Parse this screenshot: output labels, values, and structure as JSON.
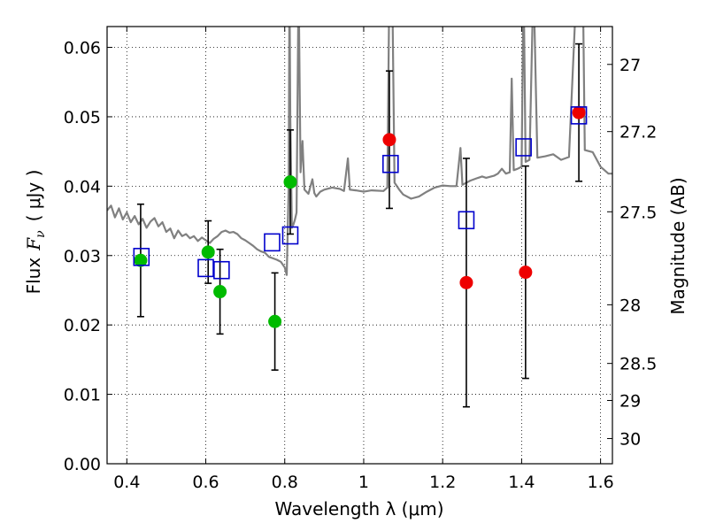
{
  "chart_data": {
    "type": "scatter",
    "xlabel": "Wavelength  λ (μm)",
    "ylabel": "Flux  F_ν  ( μJy )",
    "ylabel_prefix": "Flux",
    "ylabel_var": "F",
    "ylabel_sub": "ν",
    "ylabel_unit": "( μJy )",
    "ylabel_right": "Magnitude (AB)",
    "xlim": [
      0.35,
      1.63
    ],
    "ylim": [
      0.0,
      0.063
    ],
    "x_ticks": [
      0.4,
      0.6,
      0.8,
      1.0,
      1.2,
      1.4,
      1.6
    ],
    "x_tick_labels": [
      "0.4",
      "0.6",
      "0.8",
      "1",
      "1.2",
      "1.4",
      "1.6"
    ],
    "y_ticks": [
      0.0,
      0.01,
      0.02,
      0.03,
      0.04,
      0.05,
      0.06
    ],
    "y_tick_labels": [
      "0.00",
      "0.01",
      "0.02",
      "0.03",
      "0.04",
      "0.05",
      "0.06"
    ],
    "right_ticks": [
      {
        "value": 27,
        "label": "27"
      },
      {
        "value": 27.2,
        "label": "27.2"
      },
      {
        "value": 27.5,
        "label": "27.5"
      },
      {
        "value": 28,
        "label": "28"
      },
      {
        "value": 28.5,
        "label": "28.5"
      },
      {
        "value": 29,
        "label": "29"
      },
      {
        "value": 30,
        "label": "30"
      }
    ],
    "grid": true,
    "colors": {
      "spectrum": "#808080",
      "green_points": "#00bb00",
      "red_points": "#ee0000",
      "model_points": "#0000cc",
      "errorbars": "#000000"
    },
    "series": [
      {
        "marker": "circle",
        "color": "#00bb00",
        "points": [
          {
            "x": 0.435,
            "y": 0.0293,
            "err": 0.0081
          },
          {
            "x": 0.606,
            "y": 0.0305,
            "err": 0.0045
          },
          {
            "x": 0.636,
            "y": 0.0248,
            "err": 0.0061
          },
          {
            "x": 0.775,
            "y": 0.0205,
            "err": 0.007
          },
          {
            "x": 0.814,
            "y": 0.0406,
            "err": 0.0075
          }
        ]
      },
      {
        "marker": "circle",
        "color": "#ee0000",
        "points": [
          {
            "x": 1.065,
            "y": 0.0467,
            "err": 0.0099
          },
          {
            "x": 1.26,
            "y": 0.0261,
            "err": 0.0179
          },
          {
            "x": 1.41,
            "y": 0.0276,
            "err": 0.0153
          },
          {
            "x": 1.545,
            "y": 0.0506,
            "err": 0.0099
          }
        ]
      },
      {
        "marker": "open-square",
        "color": "#0000cc",
        "points": [
          {
            "x": 0.437,
            "y": 0.0298
          },
          {
            "x": 0.6,
            "y": 0.0282
          },
          {
            "x": 0.64,
            "y": 0.0279
          },
          {
            "x": 0.768,
            "y": 0.0319
          },
          {
            "x": 0.814,
            "y": 0.0329
          },
          {
            "x": 1.068,
            "y": 0.0432
          },
          {
            "x": 1.26,
            "y": 0.0351
          },
          {
            "x": 1.405,
            "y": 0.0456
          },
          {
            "x": 1.545,
            "y": 0.0502
          }
        ]
      },
      {
        "marker": "line",
        "color": "#808080",
        "points": [
          [
            0.35,
            0.0365
          ],
          [
            0.36,
            0.0372
          ],
          [
            0.37,
            0.0355
          ],
          [
            0.38,
            0.0368
          ],
          [
            0.39,
            0.0352
          ],
          [
            0.4,
            0.0362
          ],
          [
            0.41,
            0.0348
          ],
          [
            0.42,
            0.0357
          ],
          [
            0.43,
            0.0345
          ],
          [
            0.44,
            0.0353
          ],
          [
            0.45,
            0.034
          ],
          [
            0.46,
            0.0349
          ],
          [
            0.47,
            0.0354
          ],
          [
            0.48,
            0.0342
          ],
          [
            0.49,
            0.0348
          ],
          [
            0.5,
            0.0334
          ],
          [
            0.51,
            0.0339
          ],
          [
            0.52,
            0.0325
          ],
          [
            0.53,
            0.0336
          ],
          [
            0.54,
            0.0328
          ],
          [
            0.55,
            0.0331
          ],
          [
            0.56,
            0.0325
          ],
          [
            0.57,
            0.0328
          ],
          [
            0.58,
            0.0321
          ],
          [
            0.59,
            0.0326
          ],
          [
            0.6,
            0.0322
          ],
          [
            0.61,
            0.0318
          ],
          [
            0.62,
            0.0324
          ],
          [
            0.63,
            0.0328
          ],
          [
            0.64,
            0.0334
          ],
          [
            0.65,
            0.0336
          ],
          [
            0.66,
            0.0333
          ],
          [
            0.67,
            0.0334
          ],
          [
            0.68,
            0.0331
          ],
          [
            0.69,
            0.0325
          ],
          [
            0.7,
            0.0322
          ],
          [
            0.71,
            0.0318
          ],
          [
            0.72,
            0.0314
          ],
          [
            0.73,
            0.0309
          ],
          [
            0.74,
            0.0306
          ],
          [
            0.75,
            0.0304
          ],
          [
            0.76,
            0.0298
          ],
          [
            0.77,
            0.0296
          ],
          [
            0.78,
            0.0294
          ],
          [
            0.79,
            0.0291
          ],
          [
            0.8,
            0.0283
          ],
          [
            0.805,
            0.0272
          ],
          [
            0.81,
            0.04
          ],
          [
            0.812,
            0.07
          ],
          [
            0.814,
            0.05
          ],
          [
            0.818,
            0.034
          ],
          [
            0.822,
            0.0345
          ],
          [
            0.826,
            0.0352
          ],
          [
            0.83,
            0.0362
          ],
          [
            0.835,
            0.07
          ],
          [
            0.84,
            0.042
          ],
          [
            0.845,
            0.0465
          ],
          [
            0.85,
            0.0395
          ],
          [
            0.86,
            0.0389
          ],
          [
            0.87,
            0.041
          ],
          [
            0.875,
            0.039
          ],
          [
            0.88,
            0.0385
          ],
          [
            0.89,
            0.0392
          ],
          [
            0.9,
            0.0395
          ],
          [
            0.92,
            0.0398
          ],
          [
            0.94,
            0.0396
          ],
          [
            0.95,
            0.0393
          ],
          [
            0.96,
            0.044
          ],
          [
            0.965,
            0.0395
          ],
          [
            0.98,
            0.0394
          ],
          [
            1.0,
            0.0392
          ],
          [
            1.02,
            0.0394
          ],
          [
            1.05,
            0.0393
          ],
          [
            1.06,
            0.0398
          ],
          [
            1.065,
            0.07
          ],
          [
            1.072,
            0.07
          ],
          [
            1.078,
            0.0405
          ],
          [
            1.09,
            0.0395
          ],
          [
            1.1,
            0.0388
          ],
          [
            1.12,
            0.0382
          ],
          [
            1.14,
            0.0385
          ],
          [
            1.16,
            0.0392
          ],
          [
            1.18,
            0.0398
          ],
          [
            1.2,
            0.0401
          ],
          [
            1.22,
            0.04
          ],
          [
            1.235,
            0.04
          ],
          [
            1.245,
            0.0455
          ],
          [
            1.25,
            0.0402
          ],
          [
            1.27,
            0.0408
          ],
          [
            1.29,
            0.0412
          ],
          [
            1.3,
            0.0414
          ],
          [
            1.31,
            0.0412
          ],
          [
            1.33,
            0.0415
          ],
          [
            1.34,
            0.0418
          ],
          [
            1.35,
            0.0425
          ],
          [
            1.36,
            0.0418
          ],
          [
            1.37,
            0.042
          ],
          [
            1.375,
            0.0555
          ],
          [
            1.38,
            0.0423
          ],
          [
            1.39,
            0.0425
          ],
          [
            1.4,
            0.0428
          ],
          [
            1.405,
            0.07
          ],
          [
            1.41,
            0.0435
          ],
          [
            1.42,
            0.0438
          ],
          [
            1.43,
            0.07
          ],
          [
            1.44,
            0.0441
          ],
          [
            1.46,
            0.0443
          ],
          [
            1.48,
            0.0446
          ],
          [
            1.5,
            0.0438
          ],
          [
            1.52,
            0.0442
          ],
          [
            1.54,
            0.07
          ],
          [
            1.555,
            0.07
          ],
          [
            1.56,
            0.0452
          ],
          [
            1.58,
            0.0449
          ],
          [
            1.6,
            0.0428
          ],
          [
            1.62,
            0.0418
          ],
          [
            1.63,
            0.0418
          ]
        ]
      }
    ]
  }
}
